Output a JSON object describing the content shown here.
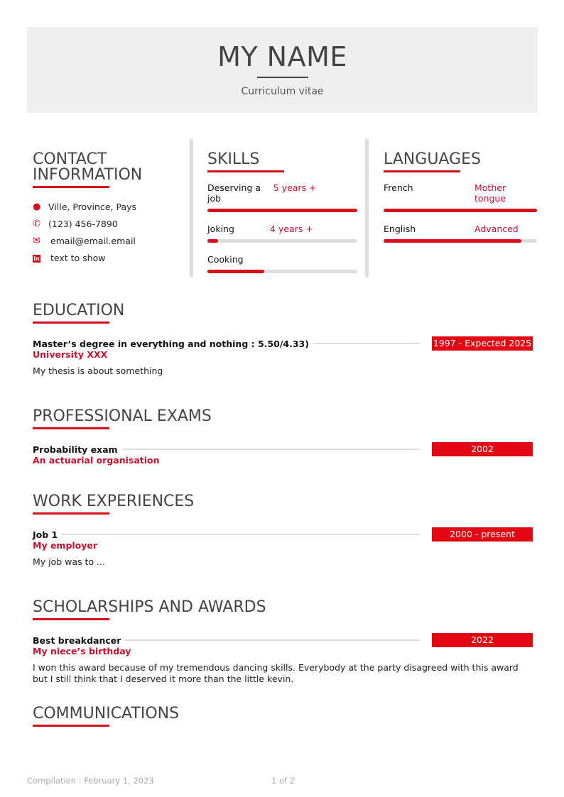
{
  "header": {
    "name": "MY NAME",
    "subtitle": "Curriculum vitae"
  },
  "contact": {
    "title": "CONTACT INFORMATION",
    "items": [
      {
        "icon": "map-pin-icon",
        "text": "Ville, Province, Pays"
      },
      {
        "icon": "phone-icon",
        "text": "(123)  456-7890"
      },
      {
        "icon": "envelope-icon",
        "text": "email@email.email"
      },
      {
        "icon": "linkedin-icon",
        "text": "text to show"
      }
    ]
  },
  "skills": {
    "title": "SKILLS",
    "items": [
      {
        "name": "Deserving a job",
        "level": "5 years +",
        "fill": 1.0
      },
      {
        "name": "Joking",
        "level": "4 years +",
        "fill": 0.07
      },
      {
        "name": "Cooking",
        "level": "",
        "fill": 0.38
      }
    ]
  },
  "languages": {
    "title": "LANGUAGES",
    "items": [
      {
        "name": "French",
        "level": "Mother tongue",
        "fill": 1.0
      },
      {
        "name": "English",
        "level": "Advanced",
        "fill": 0.9
      }
    ]
  },
  "education": {
    "title": "EDUCATION",
    "entries": [
      {
        "title": "Master’s degree in everything and nothing : 5.50/4.33)",
        "date": "1997 - Expected 2025",
        "org": "University XXX",
        "desc": "My thesis is about something"
      }
    ]
  },
  "exams": {
    "title": "PROFESSIONAL EXAMS",
    "entries": [
      {
        "title": "Probability exam",
        "date": "2002",
        "org": "An actuarial organisation"
      }
    ]
  },
  "work": {
    "title": "WORK EXPERIENCES",
    "entries": [
      {
        "title": "Job 1",
        "date": "2000 - present",
        "org": "My employer",
        "desc": "My job was to ..."
      }
    ]
  },
  "awards": {
    "title": "SCHOLARSHIPS AND AWARDS",
    "entries": [
      {
        "title": "Best breakdancer",
        "date": "2022",
        "org": "My niece’s birthday",
        "desc": "I won this award because of my tremendous dancing skills. Everybody at the party disagreed with this award but I still think that I deserved it more than the little kevin."
      }
    ]
  },
  "communications": {
    "title": "COMMUNICATIONS"
  },
  "footer": {
    "compilation": "Compilation : February 1, 2023",
    "page": "1 of 2"
  },
  "colors": {
    "accent": "#e30613",
    "heading": "#444444",
    "header_bg": "#efefef"
  }
}
